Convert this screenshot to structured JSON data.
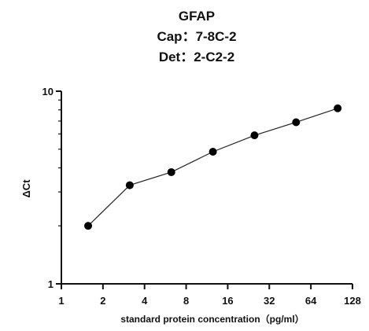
{
  "chart_data": {
    "type": "line",
    "title_lines": [
      "GFAP",
      "Cap：7-8C-2",
      "Det：2-C2-2"
    ],
    "xlabel": "standard protein concentration（pg/ml）",
    "ylabel": "ΔCt",
    "x_scale": "log2",
    "y_scale": "log10",
    "xlim": [
      1,
      128
    ],
    "ylim": [
      1,
      10
    ],
    "x_ticks": [
      1,
      2,
      4,
      8,
      16,
      32,
      64,
      128
    ],
    "x_tick_labels": [
      "1",
      "2",
      "4",
      "8",
      "16",
      "32",
      "64",
      "128"
    ],
    "y_ticks": [
      1,
      10
    ],
    "y_tick_labels": [
      "1",
      "10"
    ],
    "grid": false,
    "legend": "none",
    "series": [
      {
        "x": [
          1.5625,
          3.125,
          6.25,
          12.5,
          25,
          50,
          100
        ],
        "y": [
          2.0,
          3.25,
          3.8,
          4.85,
          5.9,
          6.9,
          8.15
        ]
      }
    ]
  }
}
